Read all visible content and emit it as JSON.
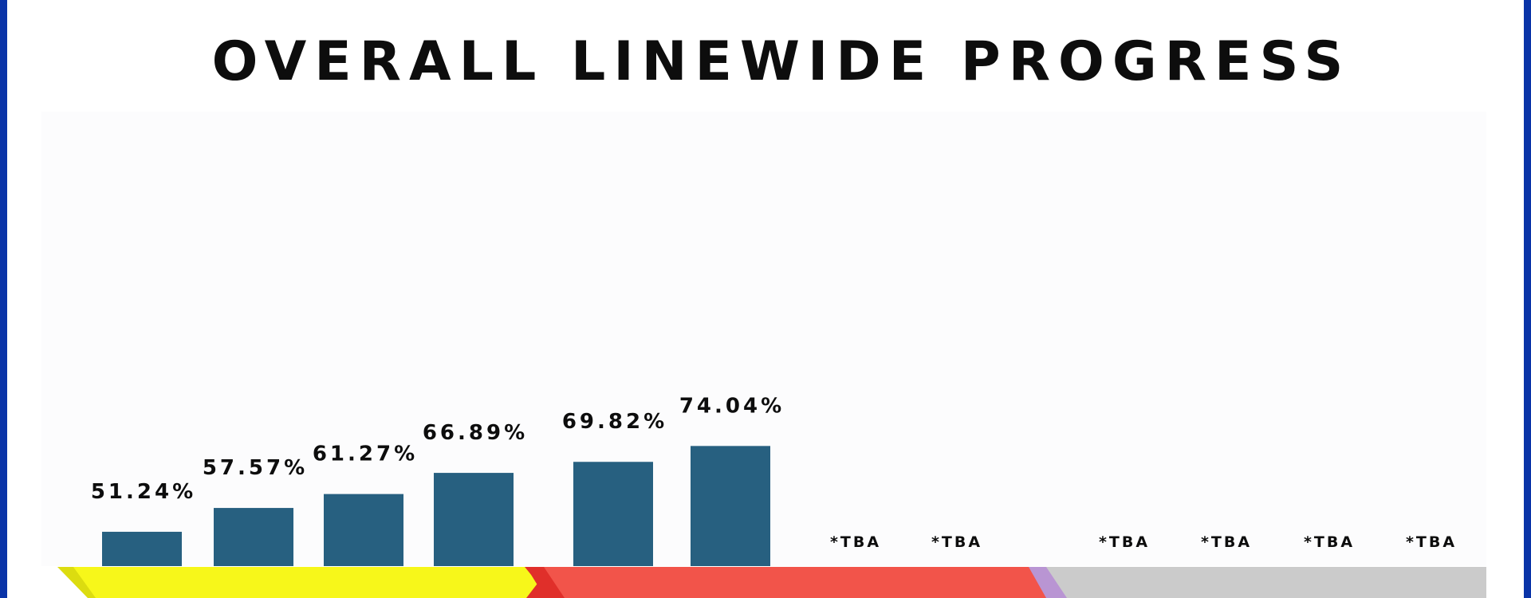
{
  "colors": {
    "bar": "#276080",
    "border": "#0a34a8",
    "band_yellow": "#f7f71a",
    "band_yellow_dark": "#dcdc10",
    "band_red": "#f2544a",
    "band_red_dark": "#e02f2a",
    "band_purple": "#b995d3",
    "band_gray": "#cbcbcb"
  },
  "chart_data": {
    "type": "bar",
    "title": "OVERALL LINEWIDE PROGRESS",
    "xlabel": "",
    "ylabel": "",
    "ylim": [
      0,
      100
    ],
    "grid": false,
    "legend": "none",
    "categories": [
      "",
      "",
      "",
      "",
      "",
      "",
      "",
      "",
      "",
      "",
      "",
      ""
    ],
    "values": [
      51.24,
      57.57,
      61.27,
      66.89,
      69.82,
      74.04,
      null,
      null,
      null,
      null,
      null,
      null
    ],
    "labels": [
      "51.24%",
      "57.57%",
      "61.27%",
      "66.89%",
      "69.82%",
      "74.04%",
      "*TBA",
      "*TBA",
      "*TBA",
      "*TBA",
      "*TBA",
      "*TBA"
    ]
  }
}
